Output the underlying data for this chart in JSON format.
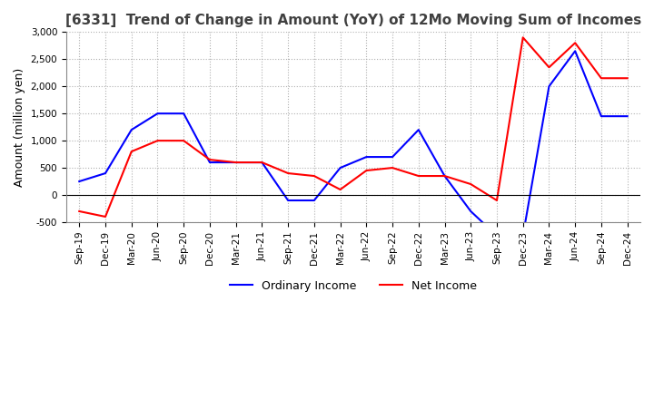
{
  "title": "[6331]  Trend of Change in Amount (YoY) of 12Mo Moving Sum of Incomes",
  "ylabel": "Amount (million yen)",
  "ylim": [
    -500,
    3000
  ],
  "yticks": [
    -500,
    0,
    500,
    1000,
    1500,
    2000,
    2500,
    3000
  ],
  "x_labels": [
    "Sep-19",
    "Dec-19",
    "Mar-20",
    "Jun-20",
    "Sep-20",
    "Dec-20",
    "Mar-21",
    "Jun-21",
    "Sep-21",
    "Dec-21",
    "Mar-22",
    "Jun-22",
    "Sep-22",
    "Dec-22",
    "Mar-23",
    "Jun-23",
    "Sep-23",
    "Dec-23",
    "Mar-24",
    "Jun-24",
    "Sep-24",
    "Dec-24"
  ],
  "ordinary_income": [
    250,
    400,
    1200,
    1500,
    1500,
    600,
    600,
    600,
    -100,
    -100,
    500,
    700,
    700,
    1200,
    350,
    -300,
    -750,
    -750,
    2000,
    2650,
    1450,
    1450
  ],
  "net_income": [
    -300,
    -400,
    800,
    1000,
    1000,
    650,
    600,
    600,
    400,
    350,
    100,
    450,
    500,
    350,
    350,
    200,
    -100,
    2900,
    2350,
    2800,
    2150,
    2150
  ],
  "ordinary_color": "#0000ff",
  "net_color": "#ff0000",
  "grid_color": "#b0b0b0",
  "bg_color": "#ffffff",
  "title_color": "#404040",
  "title_fontsize": 11,
  "legend_fontsize": 9,
  "tick_fontsize": 7.5,
  "ylabel_fontsize": 9
}
